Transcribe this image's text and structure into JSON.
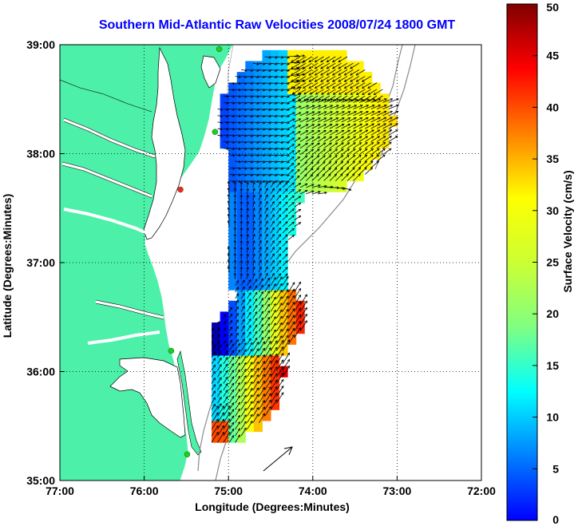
{
  "title": "Southern Mid-Atlantic Raw Velocities 2008/07/24 1800 GMT",
  "x_axis": {
    "label": "Longitude (Degrees:Minutes)",
    "ticks": [
      "77:00",
      "76:00",
      "75:00",
      "74:00",
      "73:00",
      "72:00"
    ]
  },
  "y_axis": {
    "label": "Latitude (Degrees:Minutes)",
    "ticks": [
      "39:00",
      "38:00",
      "37:00",
      "36:00",
      "35:00"
    ]
  },
  "colorbar": {
    "label": "Surface Velocity (cm/s)",
    "ticks": [
      "50",
      "45",
      "40",
      "35",
      "30",
      "25",
      "20",
      "15",
      "10",
      "5",
      "0"
    ],
    "colormap": "jet"
  },
  "colors": {
    "land": "#4df0a8",
    "title": "#0000ff",
    "vector": "#000000"
  },
  "stations": [
    {
      "lon": -75.11,
      "lat": 38.96,
      "color": "#22cc22"
    },
    {
      "lon": -75.16,
      "lat": 38.2,
      "color": "#22cc22"
    },
    {
      "lon": -75.57,
      "lat": 37.67,
      "color": "#ff2222"
    },
    {
      "lon": -75.68,
      "lat": 36.19,
      "color": "#22cc22"
    },
    {
      "lon": -75.49,
      "lat": 35.24,
      "color": "#22cc22"
    }
  ],
  "chart_data": {
    "type": "vector-field map",
    "lon_range": [
      -77,
      -72
    ],
    "lat_range": [
      35,
      39
    ],
    "value_range_cm_s": [
      0,
      50
    ],
    "reference_arrow_note": "scale arrow drawn near 74:10W 35:15N"
  }
}
